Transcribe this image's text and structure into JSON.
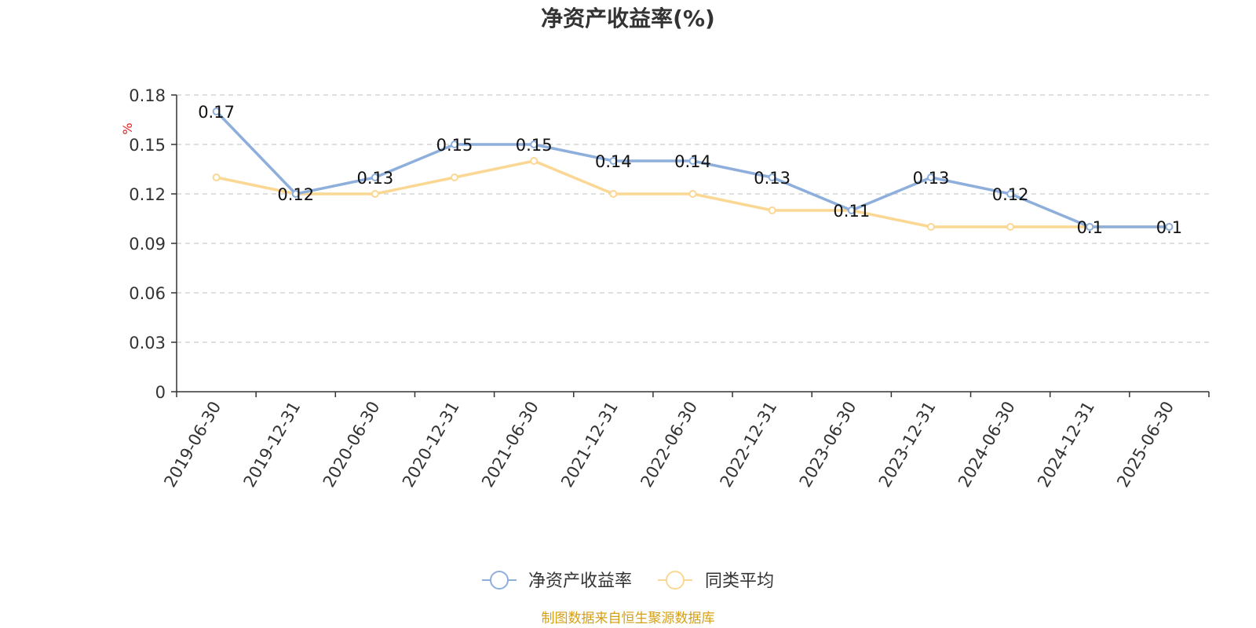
{
  "chart_data": {
    "type": "line",
    "title": "净资产收益率(%)",
    "unit_label": "%",
    "x": [
      "2019-06-30",
      "2019-12-31",
      "2020-06-30",
      "2020-12-31",
      "2021-06-30",
      "2021-12-31",
      "2022-06-30",
      "2022-12-31",
      "2023-06-30",
      "2023-12-31",
      "2024-06-30",
      "2024-12-31",
      "2025-06-30"
    ],
    "y_ticks": [
      "0",
      "0.03",
      "0.06",
      "0.09",
      "0.12",
      "0.15",
      "0.18"
    ],
    "ylim": [
      0,
      0.18
    ],
    "grid": true,
    "legend_position": "bottom-center",
    "series": [
      {
        "name": "净资产收益率",
        "color": "#8eaedb",
        "values": [
          0.17,
          0.12,
          0.13,
          0.15,
          0.15,
          0.14,
          0.14,
          0.13,
          0.11,
          0.13,
          0.12,
          0.1,
          0.1
        ],
        "data_labels": [
          "0.17",
          "0.12",
          "0.13",
          "0.15",
          "0.15",
          "0.14",
          "0.14",
          "0.13",
          "0.11",
          "0.13",
          "0.12",
          "0.1",
          "0.1"
        ]
      },
      {
        "name": "同类平均",
        "color": "#fbd794",
        "values": [
          0.13,
          0.12,
          0.12,
          0.13,
          0.14,
          0.12,
          0.12,
          0.11,
          0.11,
          0.1,
          0.1,
          0.1,
          0.1
        ]
      }
    ]
  },
  "footer": {
    "source": "制图数据来自恒生聚源数据库"
  }
}
